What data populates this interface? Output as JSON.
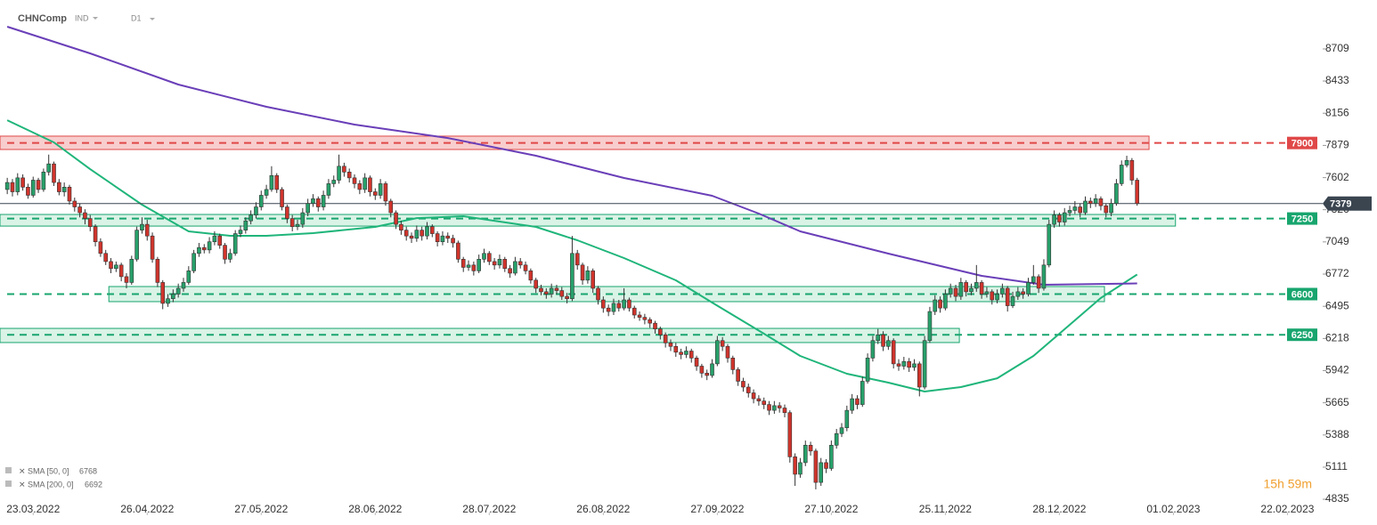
{
  "header": {
    "symbol": "CHNComp",
    "class": "IND",
    "interval": "D1"
  },
  "timer": "15h 59m",
  "chart_data": {
    "type": "candlestick",
    "xlim": [
      -1.4,
      253.8
    ],
    "xticks": [
      {
        "value": 5,
        "label": "23.03.2022"
      },
      {
        "value": 27,
        "label": "26.04.2022"
      },
      {
        "value": 49,
        "label": "27.05.2022"
      },
      {
        "value": 71,
        "label": "28.06.2022"
      },
      {
        "value": 93,
        "label": "28.07.2022"
      },
      {
        "value": 115,
        "label": "26.08.2022"
      },
      {
        "value": 137,
        "label": "27.09.2022"
      },
      {
        "value": 159,
        "label": "27.10.2022"
      },
      {
        "value": 181,
        "label": "25.11.2022"
      },
      {
        "value": 203,
        "label": "28.12.2022"
      },
      {
        "value": 225,
        "label": "01.02.2023"
      },
      {
        "value": 247,
        "label": "22.02.2023"
      }
    ],
    "ylim": [
      4690,
      9130
    ],
    "yticks": [
      4835,
      5111,
      5388,
      5665,
      5942,
      6218,
      6495,
      6772,
      7049,
      7326,
      7602,
      7879,
      8156,
      8433,
      8709
    ],
    "up_color": "#27a06a",
    "down_color": "#d0342c",
    "open": [
      7500,
      7560,
      7480,
      7600,
      7520,
      7450,
      7580,
      7500,
      7650,
      7720,
      7560,
      7480,
      7520,
      7400,
      7350,
      7300,
      7250,
      7180,
      7050,
      6950,
      6880,
      6820,
      6850,
      6750,
      6700,
      6900,
      7150,
      7200,
      7100,
      6900,
      6700,
      6520,
      6560,
      6600,
      6650,
      6700,
      6800,
      6950,
      7000,
      6980,
      7050,
      7100,
      7020,
      6900,
      6950,
      7120,
      7150,
      7230,
      7280,
      7350,
      7450,
      7500,
      7620,
      7500,
      7350,
      7250,
      7180,
      7200,
      7300,
      7380,
      7420,
      7350,
      7450,
      7550,
      7580,
      7700,
      7650,
      7600,
      7550,
      7500,
      7600,
      7480,
      7450,
      7550,
      7400,
      7300,
      7200,
      7150,
      7100,
      7080,
      7150,
      7100,
      7180,
      7120,
      7050,
      7100,
      7080,
      7040,
      6900,
      6830,
      6850,
      6800,
      6900,
      6950,
      6880,
      6850,
      6900,
      6820,
      6780,
      6880,
      6850,
      6800,
      6720,
      6650,
      6620,
      6600,
      6650,
      6630,
      6580,
      6560,
      6950,
      6850,
      6720,
      6800,
      6650,
      6550,
      6480,
      6450,
      6520,
      6480,
      6550,
      6480,
      6420,
      6400,
      6380,
      6350,
      6300,
      6250,
      6180,
      6150,
      6100,
      6080,
      6110,
      6050,
      5980,
      5920,
      5900,
      6000,
      6200,
      6150,
      6050,
      5950,
      5850,
      5800,
      5750,
      5700,
      5680,
      5650,
      5600,
      5640,
      5620,
      5580,
      5200,
      5050,
      5150,
      5300,
      5250,
      4980,
      5150,
      5100,
      5300,
      5400,
      5450,
      5600,
      5700,
      5650,
      5850,
      6050,
      6200,
      6250,
      6150,
      6200,
      6000,
      5980,
      6020,
      5970,
      6000,
      5800,
      6200,
      6450,
      6550,
      6480,
      6600,
      6650,
      6580,
      6700,
      6620,
      6650,
      6700,
      6600,
      6620,
      6550,
      6600,
      6650,
      6500,
      6580,
      6620,
      6600,
      6700,
      6750,
      6650,
      6850,
      7200,
      7280,
      7220,
      7300,
      7320,
      7350,
      7300,
      7400,
      7380,
      7420,
      7360,
      7300,
      7380,
      7550,
      7710,
      7750,
      7580
    ],
    "close": [
      7560,
      7480,
      7600,
      7520,
      7450,
      7580,
      7500,
      7650,
      7720,
      7560,
      7480,
      7520,
      7400,
      7350,
      7300,
      7250,
      7180,
      7050,
      6950,
      6880,
      6820,
      6850,
      6750,
      6700,
      6900,
      7150,
      7200,
      7100,
      6900,
      6700,
      6520,
      6560,
      6600,
      6650,
      6700,
      6800,
      6950,
      7000,
      6980,
      7050,
      7100,
      7020,
      6900,
      6950,
      7120,
      7150,
      7230,
      7280,
      7350,
      7450,
      7500,
      7620,
      7500,
      7350,
      7250,
      7180,
      7200,
      7300,
      7380,
      7420,
      7350,
      7450,
      7550,
      7580,
      7700,
      7650,
      7600,
      7550,
      7500,
      7600,
      7480,
      7450,
      7550,
      7400,
      7300,
      7200,
      7150,
      7100,
      7080,
      7150,
      7100,
      7180,
      7120,
      7050,
      7100,
      7080,
      7040,
      6900,
      6830,
      6850,
      6800,
      6900,
      6950,
      6880,
      6850,
      6900,
      6820,
      6780,
      6880,
      6850,
      6800,
      6720,
      6650,
      6620,
      6600,
      6650,
      6630,
      6580,
      6560,
      6950,
      6850,
      6720,
      6800,
      6650,
      6550,
      6480,
      6450,
      6520,
      6480,
      6550,
      6480,
      6420,
      6400,
      6380,
      6350,
      6300,
      6250,
      6180,
      6150,
      6100,
      6080,
      6110,
      6050,
      5980,
      5920,
      5900,
      6000,
      6200,
      6150,
      6050,
      5950,
      5850,
      5800,
      5750,
      5700,
      5680,
      5650,
      5600,
      5640,
      5620,
      5580,
      5200,
      5050,
      5150,
      5300,
      5250,
      4980,
      5150,
      5100,
      5300,
      5400,
      5450,
      5600,
      5700,
      5650,
      5850,
      6050,
      6200,
      6250,
      6150,
      6200,
      6000,
      5980,
      6020,
      5970,
      6000,
      5800,
      6200,
      6450,
      6550,
      6480,
      6600,
      6650,
      6580,
      6700,
      6620,
      6650,
      6700,
      6600,
      6620,
      6550,
      6600,
      6650,
      6500,
      6580,
      6620,
      6600,
      6700,
      6750,
      6650,
      6850,
      7200,
      7280,
      7220,
      7300,
      7320,
      7350,
      7300,
      7400,
      7380,
      7420,
      7360,
      7300,
      7380,
      7550,
      7710,
      7750,
      7580,
      7379
    ],
    "high": [
      7600,
      7590,
      7640,
      7630,
      7550,
      7610,
      7600,
      7680,
      7800,
      7740,
      7590,
      7560,
      7540,
      7430,
      7380,
      7330,
      7280,
      7200,
      7080,
      6980,
      6910,
      6880,
      6870,
      6780,
      6930,
      7180,
      7260,
      7240,
      7130,
      6920,
      6720,
      6600,
      6640,
      6690,
      6740,
      6840,
      6980,
      7040,
      7030,
      7090,
      7140,
      7120,
      7040,
      6990,
      7150,
      7190,
      7260,
      7320,
      7390,
      7490,
      7540,
      7700,
      7640,
      7520,
      7370,
      7280,
      7240,
      7340,
      7420,
      7460,
      7440,
      7490,
      7590,
      7620,
      7800,
      7730,
      7680,
      7630,
      7580,
      7640,
      7620,
      7510,
      7590,
      7570,
      7420,
      7320,
      7230,
      7180,
      7130,
      7190,
      7180,
      7220,
      7200,
      7140,
      7140,
      7130,
      7110,
      7060,
      6920,
      6890,
      6880,
      6940,
      6990,
      6970,
      6910,
      6940,
      6920,
      6850,
      6920,
      6910,
      6880,
      6820,
      6740,
      6680,
      6650,
      6690,
      6680,
      6660,
      6610,
      7100,
      6980,
      6870,
      6840,
      6820,
      6670,
      6580,
      6510,
      6560,
      6550,
      6650,
      6570,
      6500,
      6450,
      6430,
      6400,
      6370,
      6320,
      6270,
      6210,
      6180,
      6130,
      6150,
      6130,
      6070,
      6000,
      5950,
      6040,
      6240,
      6230,
      6170,
      6070,
      5970,
      5880,
      5830,
      5780,
      5730,
      5710,
      5680,
      5680,
      5670,
      5650,
      5600,
      5230,
      5190,
      5340,
      5330,
      5270,
      5190,
      5180,
      5340,
      5440,
      5490,
      5640,
      5740,
      5730,
      5890,
      6090,
      6240,
      6300,
      6280,
      6240,
      6220,
      6040,
      6060,
      6050,
      6040,
      6020,
      6240,
      6490,
      6590,
      6580,
      6640,
      6690,
      6680,
      6740,
      6720,
      6690,
      6850,
      6720,
      6660,
      6640,
      6640,
      6690,
      6670,
      6620,
      6660,
      6650,
      6740,
      6850,
      6770,
      6900,
      7240,
      7320,
      7300,
      7340,
      7360,
      7400,
      7380,
      7440,
      7430,
      7460,
      7440,
      7380,
      7420,
      7590,
      7750,
      7790,
      7770,
      7600
    ],
    "low": [
      7460,
      7440,
      7450,
      7490,
      7420,
      7430,
      7470,
      7480,
      7620,
      7530,
      7450,
      7440,
      7370,
      7310,
      7260,
      7200,
      7140,
      7010,
      6920,
      6850,
      6780,
      6790,
      6710,
      6650,
      6680,
      6880,
      7120,
      7060,
      6870,
      6660,
      6470,
      6490,
      6530,
      6570,
      6620,
      6680,
      6780,
      6920,
      6950,
      6950,
      7020,
      6990,
      6860,
      6870,
      6930,
      7090,
      7120,
      7200,
      7250,
      7320,
      7420,
      7480,
      7470,
      7320,
      7210,
      7140,
      7150,
      7170,
      7270,
      7350,
      7310,
      7320,
      7420,
      7520,
      7550,
      7610,
      7560,
      7510,
      7460,
      7470,
      7440,
      7410,
      7420,
      7360,
      7260,
      7160,
      7110,
      7060,
      7040,
      7050,
      7060,
      7070,
      7090,
      7010,
      7020,
      7040,
      7000,
      6870,
      6790,
      6800,
      6760,
      6780,
      6870,
      6850,
      6810,
      6820,
      6790,
      6740,
      6760,
      6820,
      6770,
      6690,
      6610,
      6590,
      6560,
      6570,
      6600,
      6550,
      6520,
      6540,
      6810,
      6680,
      6690,
      6610,
      6510,
      6440,
      6410,
      6420,
      6450,
      6460,
      6450,
      6390,
      6370,
      6340,
      6310,
      6260,
      6210,
      6140,
      6110,
      6060,
      6040,
      6050,
      6010,
      5940,
      5880,
      5860,
      5880,
      5980,
      6110,
      6010,
      5910,
      5810,
      5760,
      5710,
      5660,
      5640,
      5610,
      5560,
      5570,
      5580,
      5540,
      5150,
      4950,
      5020,
      5120,
      5210,
      4920,
      4950,
      5060,
      5080,
      5270,
      5370,
      5420,
      5570,
      5610,
      5630,
      5830,
      6020,
      6170,
      6110,
      6120,
      5960,
      5940,
      5950,
      5930,
      5940,
      5720,
      5780,
      6180,
      6420,
      6440,
      6460,
      6570,
      6540,
      6550,
      6580,
      6590,
      6620,
      6560,
      6570,
      6510,
      6520,
      6570,
      6450,
      6480,
      6550,
      6560,
      6580,
      6680,
      6610,
      6630,
      6830,
      7170,
      7180,
      7190,
      7270,
      7290,
      7260,
      7280,
      7340,
      7350,
      7320,
      7260,
      7270,
      7360,
      7530,
      7690,
      7540,
      7360
    ],
    "series": [
      {
        "name": "SMA [50, 0]",
        "color": "#1fb57a",
        "x": [
          0,
          9,
          16,
          26,
          35,
          43,
          50,
          59,
          71,
          79,
          88,
          102,
          110,
          119,
          129,
          136,
          146,
          153,
          162,
          170,
          177,
          184,
          191,
          198,
          205,
          211,
          218
        ],
        "values": [
          8096,
          7905,
          7675,
          7369,
          7140,
          7101,
          7101,
          7124,
          7178,
          7254,
          7270,
          7178,
          7063,
          6910,
          6719,
          6527,
          6259,
          6068,
          5915,
          5838,
          5762,
          5800,
          5876,
          6068,
          6336,
          6566,
          6768
        ]
      },
      {
        "name": "SMA [200, 0]",
        "color": "#6a3fb8",
        "x": [
          0,
          16,
          33,
          50,
          67,
          85,
          102,
          119,
          136,
          145,
          153,
          170,
          188,
          200,
          218
        ],
        "values": [
          8900,
          8671,
          8403,
          8211,
          8058,
          7943,
          7790,
          7599,
          7446,
          7293,
          7140,
          6948,
          6757,
          6680,
          6692
        ]
      }
    ],
    "zones": [
      {
        "level": 7900,
        "low": 7844,
        "high": 7959,
        "from": -1.4,
        "to": 220.3,
        "color": "#e04848",
        "fill": "#f7c4c4"
      },
      {
        "level": 7250,
        "low": 7185,
        "high": 7285,
        "from": -1.4,
        "to": 225.4,
        "color": "#18a56e",
        "fill": "#d3f1e3"
      },
      {
        "level": 6600,
        "low": 6535,
        "high": 6665,
        "from": 19.6,
        "to": 211.7,
        "color": "#18a56e",
        "fill": "#d3f1e3"
      },
      {
        "level": 6250,
        "low": 6183,
        "high": 6305,
        "from": -1.4,
        "to": 183.7,
        "color": "#18a56e",
        "fill": "#d3f1e3"
      }
    ]
  }
}
